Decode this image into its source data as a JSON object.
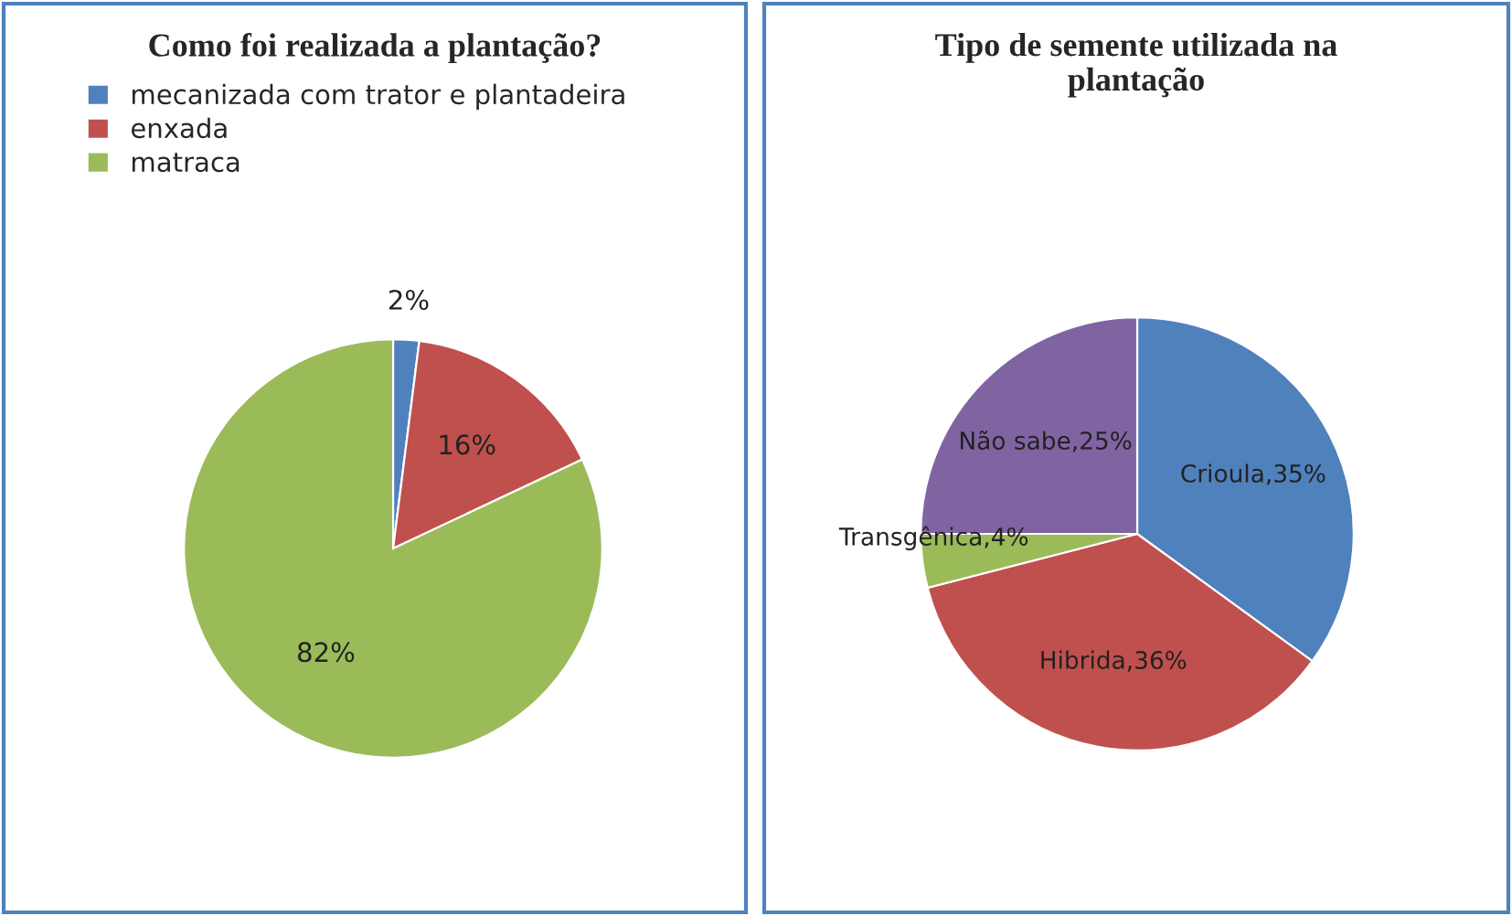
{
  "chart_data": [
    {
      "type": "pie",
      "title": "Como foi realizada a plantação?",
      "categories": [
        "mecanizada com trator e plantadeira",
        "enxada",
        "matraca"
      ],
      "values": [
        2,
        16,
        82
      ],
      "colors": [
        "#4f81bd",
        "#c0504d",
        "#9bbb59"
      ],
      "value_labels": [
        "2%",
        "16%",
        "82%"
      ],
      "legend": "top left"
    },
    {
      "type": "pie",
      "title": "Tipo de semente utilizada na\nplantação",
      "categories": [
        "Crioula",
        "Hibrida",
        "Transgênica",
        "Não sabe"
      ],
      "values": [
        35,
        36,
        4,
        25
      ],
      "colors": [
        "#4f81bd",
        "#c0504d",
        "#9bbb59",
        "#8064a2"
      ],
      "value_labels": [
        ",35%",
        ",36%",
        ",4%",
        ",25%"
      ],
      "legend": false
    }
  ]
}
